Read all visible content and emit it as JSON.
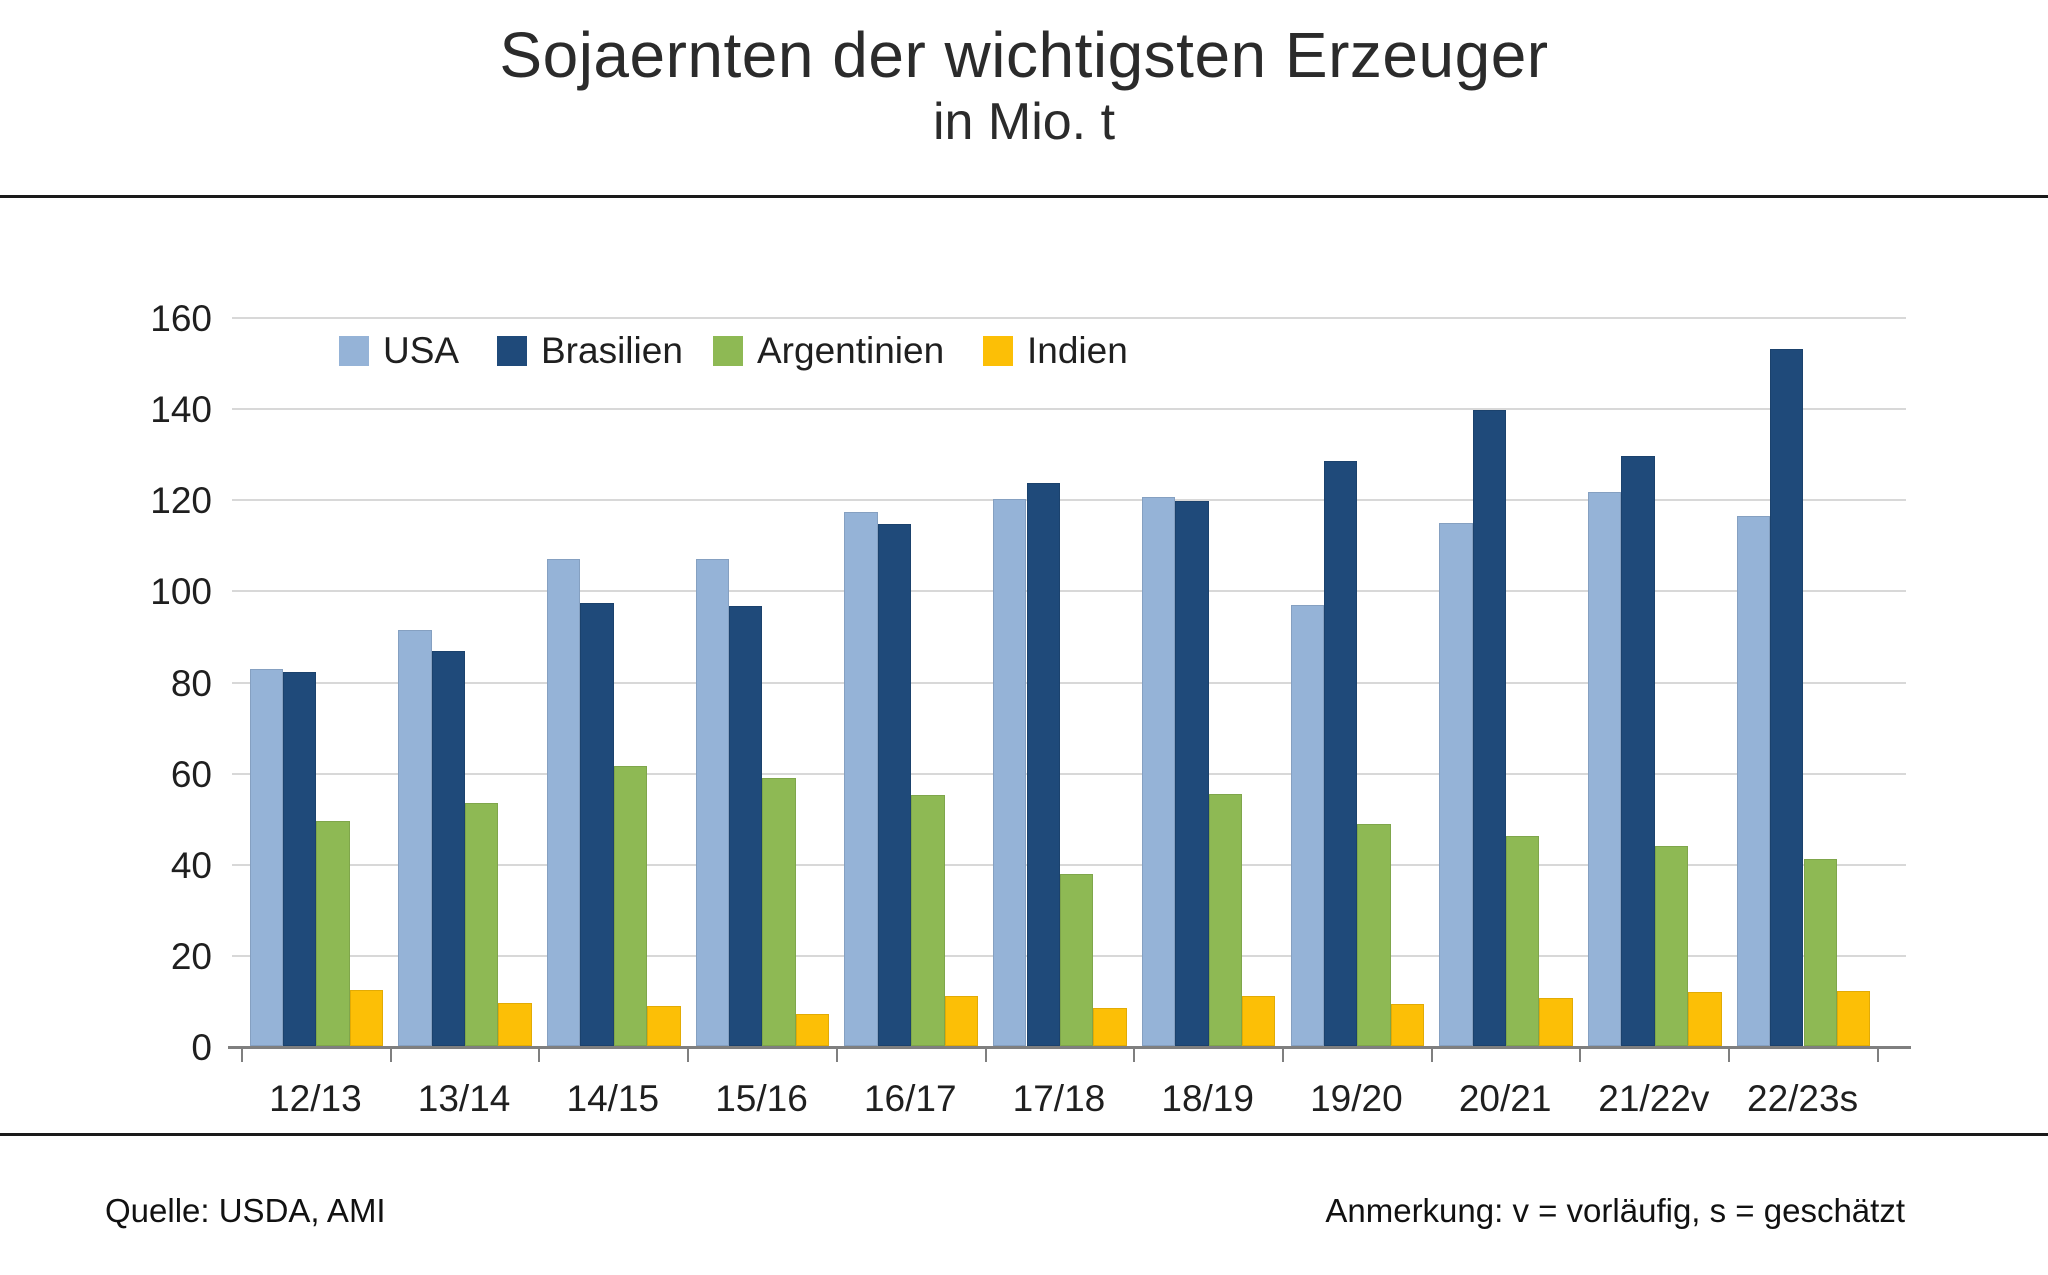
{
  "title": "Sojaernten der wichtigsten Erzeuger",
  "subtitle": "in Mio. t",
  "footer": {
    "source": "Quelle: USDA, AMI",
    "note": "Anmerkung: v = vorläufig, s = geschätzt"
  },
  "chart_data": {
    "type": "bar",
    "categories": [
      "12/13",
      "13/14",
      "14/15",
      "15/16",
      "16/17",
      "17/18",
      "18/19",
      "19/20",
      "20/21",
      "21/22v",
      "22/23s"
    ],
    "series": [
      {
        "name": "USA",
        "color": "#95B3D7",
        "values": [
          82.8,
          91.4,
          106.9,
          106.9,
          117.2,
          120.1,
          120.5,
          96.7,
          114.7,
          121.5,
          116.4
        ]
      },
      {
        "name": "Brasilien",
        "color": "#1F4A7A",
        "values": [
          82.1,
          86.7,
          97.2,
          96.5,
          114.6,
          123.5,
          119.7,
          128.5,
          139.5,
          129.5,
          153.0
        ]
      },
      {
        "name": "Argentinien",
        "color": "#8EB954",
        "values": [
          49.3,
          53.4,
          61.4,
          58.8,
          55.0,
          37.8,
          55.3,
          48.8,
          46.2,
          43.9,
          41.0
        ]
      },
      {
        "name": "Indien",
        "color": "#FCBF06",
        "values": [
          12.2,
          9.5,
          8.7,
          7.0,
          11.0,
          8.4,
          10.9,
          9.3,
          10.5,
          11.9,
          12.0
        ]
      }
    ],
    "title": "Sojaernten der wichtigsten Erzeuger",
    "subtitle": "in Mio. t",
    "xlabel": "",
    "ylabel": "",
    "ylim": [
      0,
      160
    ],
    "ytick_step": 20,
    "grid": true,
    "legend_position": "top-inside",
    "axis_color": "#7f7f7f",
    "gridline_color": "#d8d8d8"
  }
}
